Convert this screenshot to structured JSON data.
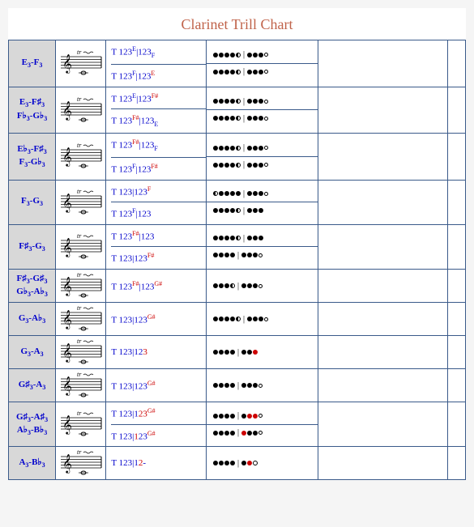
{
  "title": "Clarinet Trill Chart",
  "colors": {
    "title": "#c0634a",
    "border": "#3a5a8a",
    "label_bg": "#d8d8d8",
    "text_blue": "#0000cc",
    "text_red": "#cc0000"
  },
  "columns": [
    "label",
    "notation",
    "fingering_text",
    "fingering_diagram",
    "empty1",
    "empty2"
  ],
  "rows": [
    {
      "label_lines": [
        "E₃-F₃"
      ],
      "entries": [
        {
          "text": [
            {
              "t": "T 123",
              "c": "key"
            },
            {
              "t": "E",
              "c": "sup"
            },
            {
              "t": "|123",
              "c": "key"
            },
            {
              "t": "F",
              "c": "supd"
            }
          ],
          "holes": [
            1,
            1,
            1,
            1,
            0.5,
            "s",
            1,
            1,
            1,
            0.1
          ]
        },
        {
          "text": [
            {
              "t": "T 123",
              "c": "key"
            },
            {
              "t": "F",
              "c": "sup"
            },
            {
              "t": "|123",
              "c": "key"
            },
            {
              "t": "E",
              "c": "supr"
            }
          ],
          "holes": [
            1,
            1,
            1,
            1,
            0.5,
            "s",
            1,
            1,
            1,
            0.1
          ]
        }
      ]
    },
    {
      "label_lines": [
        "E₃-F♯₃",
        "F♭₃-G♭₃"
      ],
      "entries": [
        {
          "text": [
            {
              "t": "T 123",
              "c": "key"
            },
            {
              "t": "E",
              "c": "sup"
            },
            {
              "t": "|123",
              "c": "key"
            },
            {
              "t": "F#",
              "c": "supr"
            }
          ],
          "holes": [
            1,
            1,
            1,
            1,
            0.5,
            "s",
            1,
            1,
            1,
            0.1
          ]
        },
        {
          "text": [
            {
              "t": "T 123",
              "c": "key"
            },
            {
              "t": "F#",
              "c": "supr"
            },
            {
              "t": "|123",
              "c": "key"
            },
            {
              "t": "E",
              "c": "supd"
            }
          ],
          "holes": [
            1,
            1,
            1,
            1,
            0.5,
            "s",
            1,
            1,
            1,
            0.1
          ]
        }
      ]
    },
    {
      "label_lines": [
        "E♭₃-F♯₃",
        "F₃-G♭₃"
      ],
      "entries": [
        {
          "text": [
            {
              "t": "T 123",
              "c": "key"
            },
            {
              "t": "F#",
              "c": "supr"
            },
            {
              "t": "|123",
              "c": "key"
            },
            {
              "t": "F",
              "c": "supd"
            }
          ],
          "holes": [
            1,
            1,
            1,
            1,
            0.5,
            "s",
            1,
            1,
            1,
            0.1
          ]
        },
        {
          "text": [
            {
              "t": "T 123",
              "c": "key"
            },
            {
              "t": "F",
              "c": "sup"
            },
            {
              "t": "|123",
              "c": "key"
            },
            {
              "t": "F#",
              "c": "supr"
            }
          ],
          "holes": [
            1,
            1,
            1,
            1,
            0.5,
            "s",
            1,
            1,
            1,
            0.1
          ]
        }
      ]
    },
    {
      "label_lines": [
        "F₃-G₃"
      ],
      "entries": [
        {
          "text": [
            {
              "t": "T 123|123",
              "c": "key"
            },
            {
              "t": "F",
              "c": "supr"
            }
          ],
          "holes": [
            0.5,
            1,
            1,
            1,
            1,
            "s",
            1,
            1,
            1,
            0.1
          ]
        },
        {
          "text": [
            {
              "t": "T 123",
              "c": "key"
            },
            {
              "t": "F",
              "c": "sup"
            },
            {
              "t": "|123",
              "c": "key"
            }
          ],
          "holes": [
            1,
            1,
            1,
            1,
            0.5,
            "s",
            1,
            1,
            1
          ]
        }
      ]
    },
    {
      "label_lines": [
        "F♯₃-G₃"
      ],
      "entries": [
        {
          "text": [
            {
              "t": "T 123",
              "c": "key"
            },
            {
              "t": "F#",
              "c": "supr"
            },
            {
              "t": "|123",
              "c": "key"
            }
          ],
          "holes": [
            1,
            1,
            1,
            1,
            0.5,
            "s",
            1,
            1,
            1
          ]
        },
        {
          "text": [
            {
              "t": "T 123|123",
              "c": "key"
            },
            {
              "t": "F#",
              "c": "supr"
            }
          ],
          "holes": [
            1,
            1,
            1,
            1,
            "s",
            1,
            1,
            1,
            0.1
          ]
        }
      ]
    },
    {
      "label_lines": [
        "F♯₃-G♯₃",
        "G♭₃-A♭₃"
      ],
      "entries": [
        {
          "text": [
            {
              "t": "T 123",
              "c": "key"
            },
            {
              "t": "F#",
              "c": "supr"
            },
            {
              "t": "|123",
              "c": "key"
            },
            {
              "t": "G#",
              "c": "supr"
            }
          ],
          "holes": [
            1,
            1,
            1,
            0.5,
            "s",
            1,
            1,
            1,
            0.1
          ]
        }
      ]
    },
    {
      "label_lines": [
        "G₃-A♭₃"
      ],
      "entries": [
        {
          "text": [
            {
              "t": "T 123|123",
              "c": "key"
            },
            {
              "t": "G#",
              "c": "supr"
            }
          ],
          "holes": [
            1,
            1,
            1,
            1,
            0.5,
            "s",
            1,
            1,
            1,
            0.1
          ]
        }
      ]
    },
    {
      "label_lines": [
        "G₃-A₃"
      ],
      "entries": [
        {
          "text": [
            {
              "t": "T 123|12",
              "c": "key"
            },
            {
              "t": "3",
              "c": "red"
            }
          ],
          "holes": [
            1,
            1,
            1,
            1,
            "s",
            1,
            1,
            2
          ]
        }
      ]
    },
    {
      "label_lines": [
        "G♯₃-A₃"
      ],
      "entries": [
        {
          "text": [
            {
              "t": "T 123|123",
              "c": "key"
            },
            {
              "t": "G#",
              "c": "supr"
            }
          ],
          "holes": [
            1,
            1,
            1,
            1,
            "s",
            1,
            1,
            1,
            0.1
          ]
        }
      ]
    },
    {
      "label_lines": [
        "G♯₃-A♯₃",
        "A♭₃-B♭₃"
      ],
      "entries": [
        {
          "text": [
            {
              "t": "T 123|1",
              "c": "key"
            },
            {
              "t": "23",
              "c": "red"
            },
            {
              "t": "G#",
              "c": "supr"
            }
          ],
          "holes": [
            1,
            1,
            1,
            1,
            "s",
            1,
            2,
            2,
            0.1
          ]
        },
        {
          "text": [
            {
              "t": "T 123|",
              "c": "key"
            },
            {
              "t": "1",
              "c": "red"
            },
            {
              "t": "23",
              "c": "key"
            },
            {
              "t": "G#",
              "c": "supr"
            }
          ],
          "holes": [
            1,
            1,
            1,
            1,
            "s",
            2,
            1,
            1,
            0.1
          ]
        }
      ]
    },
    {
      "label_lines": [
        "A₃-B♭₃"
      ],
      "entries": [
        {
          "text": [
            {
              "t": "T 123|1",
              "c": "key"
            },
            {
              "t": "2",
              "c": "red"
            },
            {
              "t": "-",
              "c": "key"
            }
          ],
          "holes": [
            1,
            1,
            1,
            1,
            "s",
            1,
            2,
            0
          ]
        }
      ]
    }
  ]
}
